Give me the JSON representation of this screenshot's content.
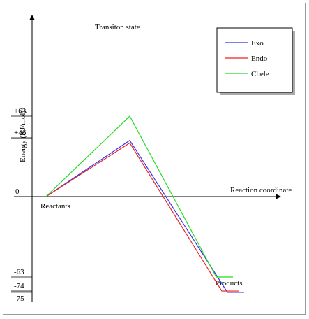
{
  "chart_data": {
    "type": "line",
    "xlabel": "Reaction coordinate",
    "ylabel": "Energy (KJ/mol)",
    "y_tick_labels": [
      "+63",
      "+46",
      "0",
      "-63",
      "-74",
      "-75"
    ],
    "y_tick_values": [
      63,
      46,
      0,
      -63,
      -74,
      -75
    ],
    "annotations": {
      "reactants": "Reactants",
      "transition_state": "Transiton state",
      "products": "Products"
    },
    "legend_position": "top-right",
    "series": [
      {
        "name": "Exo",
        "color": "#3333ee",
        "points": [
          [
            0.5,
            0
          ],
          [
            3.5,
            44
          ],
          [
            7,
            -75
          ],
          [
            7.6,
            -75
          ]
        ]
      },
      {
        "name": "Endo",
        "color": "#ee2222",
        "points": [
          [
            0.5,
            0
          ],
          [
            3.5,
            42
          ],
          [
            6.8,
            -74
          ],
          [
            7.4,
            -74
          ]
        ]
      },
      {
        "name": "Chele",
        "color": "#22dd22",
        "points": [
          [
            0.5,
            0
          ],
          [
            3.5,
            63
          ],
          [
            6.6,
            -63
          ],
          [
            7.2,
            -63
          ]
        ]
      }
    ]
  }
}
